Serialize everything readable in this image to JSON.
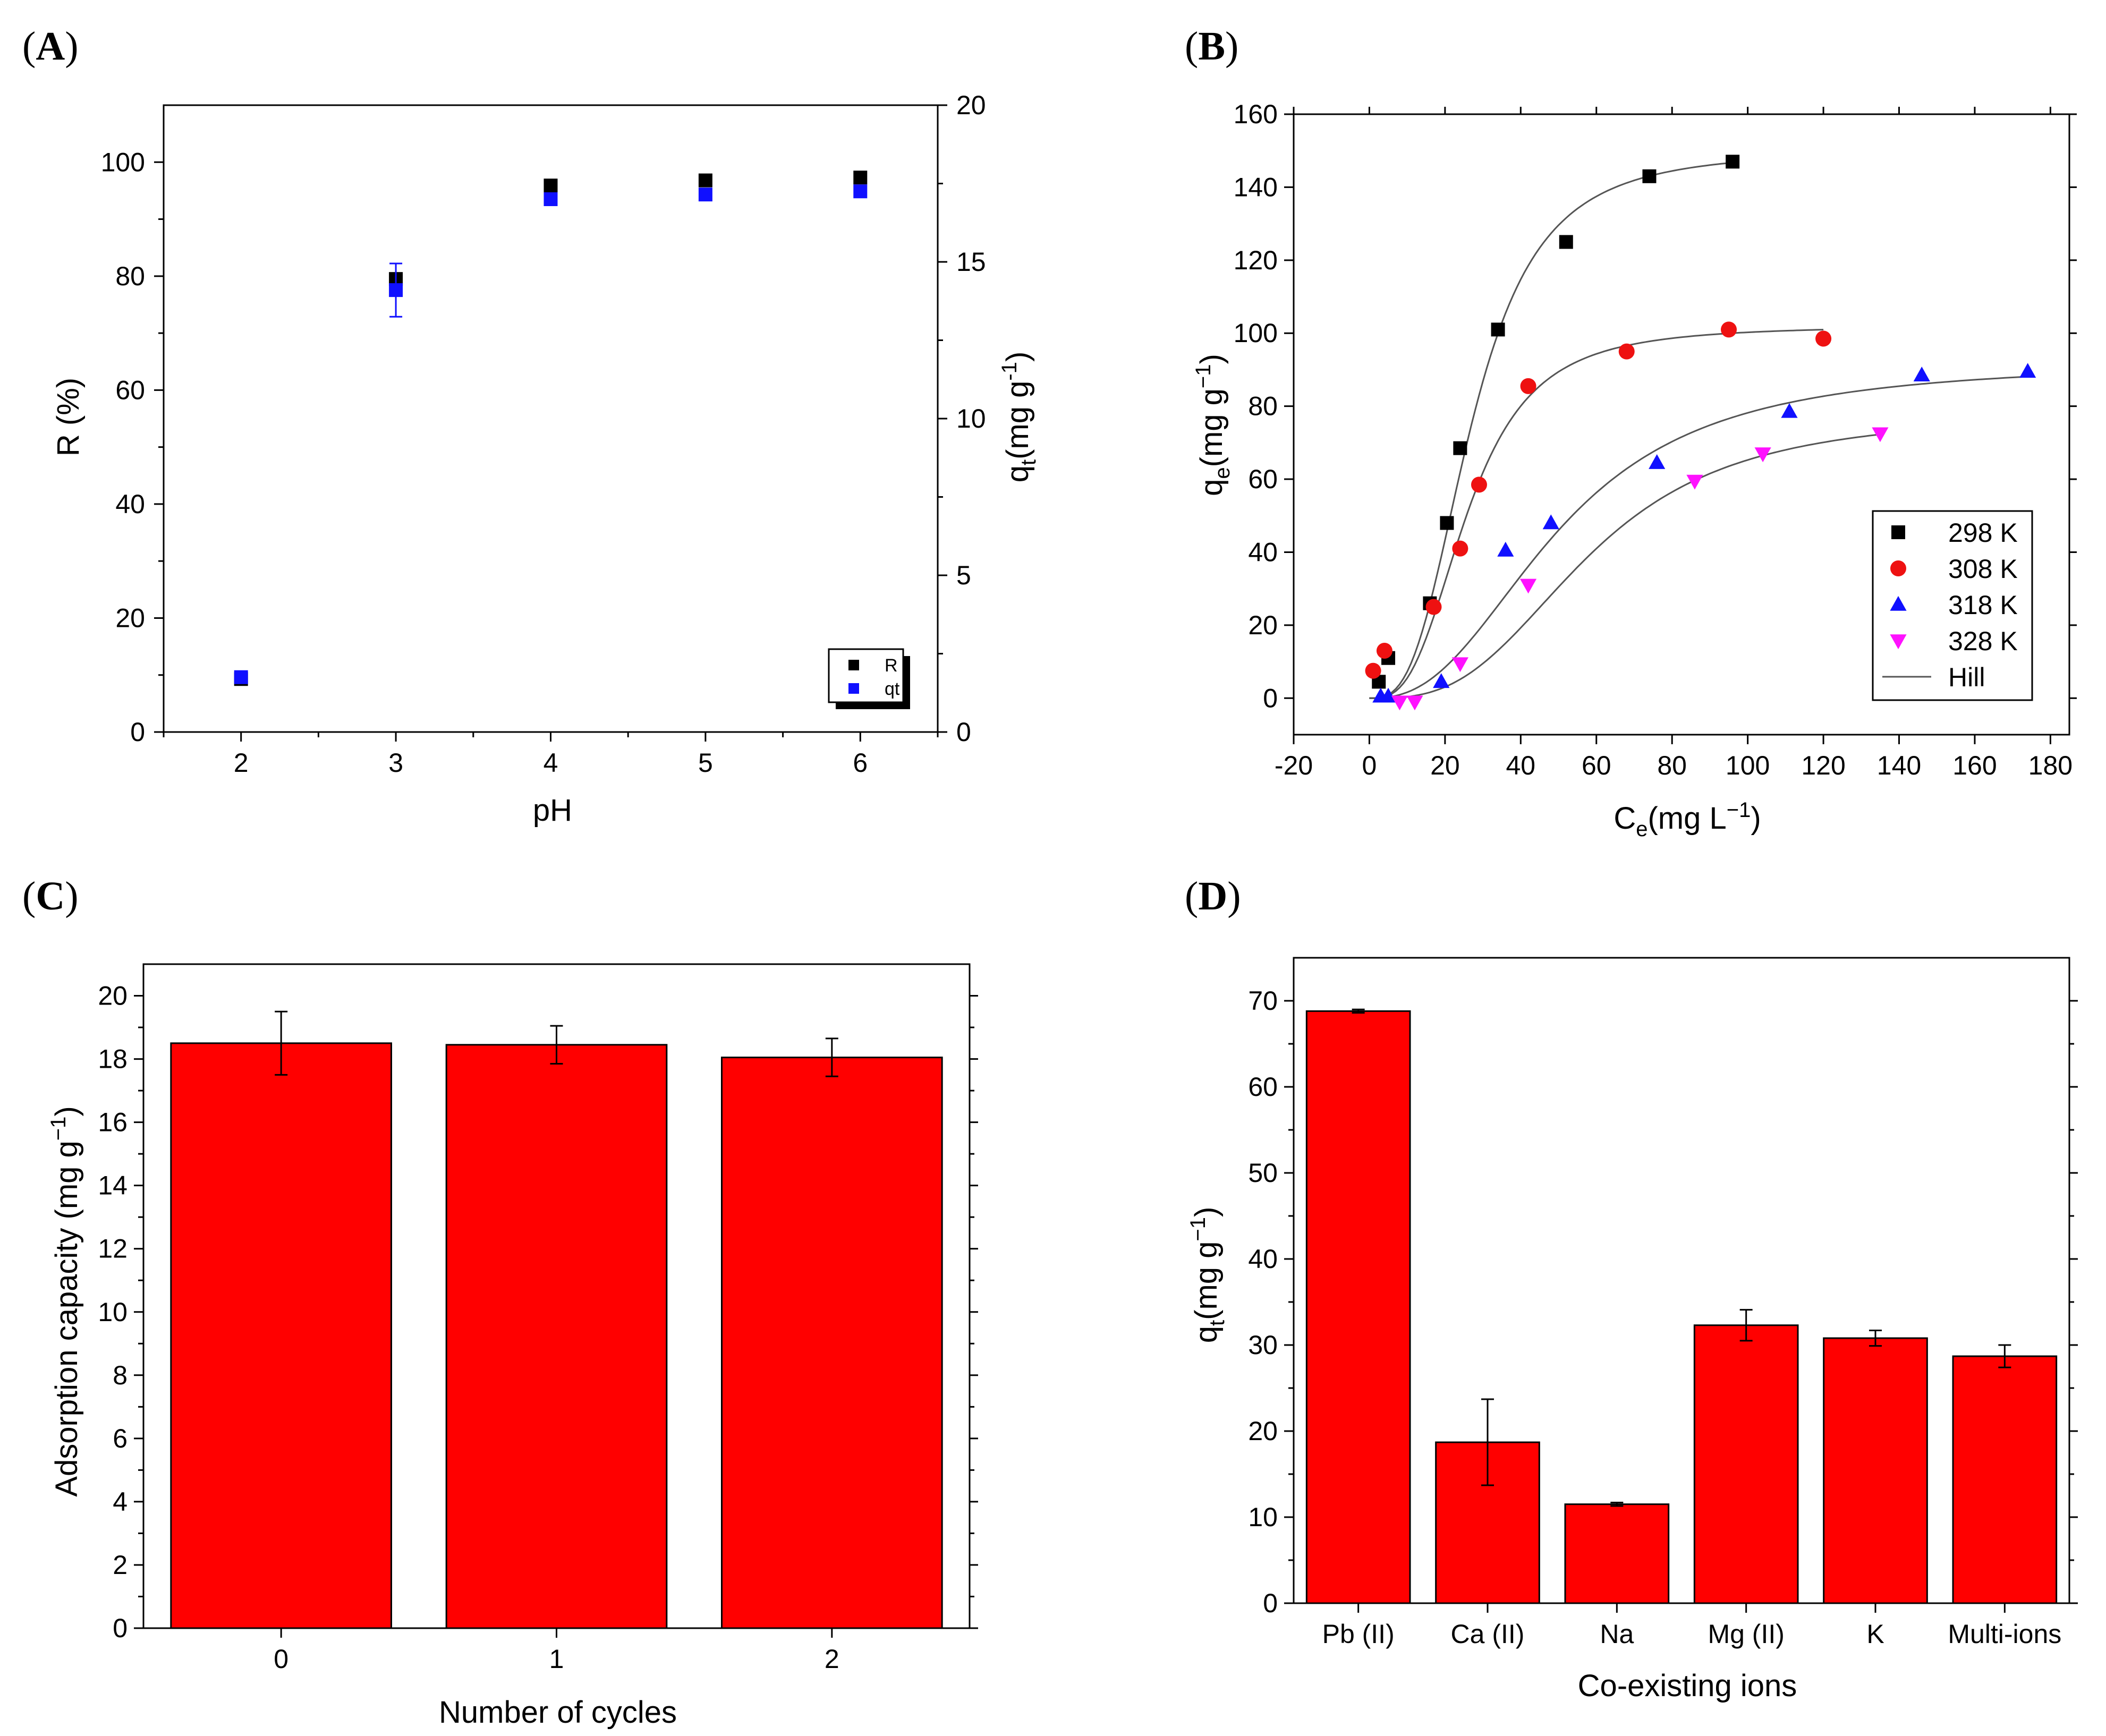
{
  "panels": {
    "A": {
      "letter": "A"
    },
    "B": {
      "letter": "B"
    },
    "C": {
      "letter": "C"
    },
    "D": {
      "letter": "D"
    }
  },
  "chart_data": [
    {
      "panel": "A",
      "type": "scatter",
      "xlabel": "pH",
      "ylabel": "R (%)",
      "ylabel_right": "q",
      "ylabel_right_sub": "t",
      "ylabel_right_unit": "(mg g",
      "ylabel_right_exp": "-1",
      "xlim": [
        1.5,
        6.5
      ],
      "ylim": [
        0,
        110
      ],
      "ylim_right": [
        0,
        20
      ],
      "x_ticks": [
        2,
        3,
        4,
        5,
        6
      ],
      "y_ticks": [
        0,
        20,
        40,
        60,
        80,
        100
      ],
      "y_ticks_right": [
        0,
        5,
        10,
        15,
        20
      ],
      "legend_position": "bottom-right",
      "series": [
        {
          "name": "R",
          "color": "#000000",
          "marker": "square",
          "axis": "left",
          "points": [
            [
              2,
              9.3
            ],
            [
              3,
              79.5
            ],
            [
              4,
              95.9
            ],
            [
              5,
              96.8
            ],
            [
              6,
              97.3
            ]
          ]
        },
        {
          "name": "qt",
          "color": "#1010ff",
          "marker": "square",
          "axis": "right",
          "points": [
            [
              2,
              1.75
            ],
            [
              3,
              14.1
            ],
            [
              4,
              17.0
            ],
            [
              5,
              17.15
            ],
            [
              6,
              17.25
            ]
          ],
          "error": [
            0,
            0.85,
            0,
            0,
            0
          ]
        }
      ]
    },
    {
      "panel": "B",
      "type": "scatter",
      "xlabel": "C",
      "xlabel_sub": "e",
      "xlabel_unit": "(mg L",
      "xlabel_exp": "−1",
      "ylabel": "q",
      "ylabel_sub": "e",
      "ylabel_unit": "(mg g",
      "ylabel_exp": "−1",
      "xlim": [
        -20,
        185
      ],
      "ylim": [
        -10,
        160
      ],
      "x_ticks": [
        -20,
        0,
        20,
        40,
        60,
        80,
        100,
        120,
        140,
        160,
        180
      ],
      "y_ticks": [
        0,
        20,
        40,
        60,
        80,
        100,
        120,
        140,
        160
      ],
      "legend_position": "bottom-right",
      "fit_label": "Hill",
      "series": [
        {
          "name": "298 K",
          "color": "#000000",
          "marker": "square",
          "points": [
            [
              2.5,
              4.5
            ],
            [
              5,
              11
            ],
            [
              16,
              26
            ],
            [
              20.5,
              48
            ],
            [
              24,
              68.5
            ],
            [
              34,
              101
            ],
            [
              52,
              125
            ],
            [
              74,
              143
            ],
            [
              96,
              147
            ]
          ],
          "fit": {
            "qmax": 150,
            "K": 27,
            "n": 3.0,
            "xmax": 96
          }
        },
        {
          "name": "308 K",
          "color": "#ee1111",
          "marker": "circle",
          "points": [
            [
              1,
              7.5
            ],
            [
              4,
              13
            ],
            [
              17,
              25
            ],
            [
              24,
              41
            ],
            [
              29,
              58.5
            ],
            [
              42,
              85.5
            ],
            [
              68,
              95
            ],
            [
              95,
              101
            ],
            [
              120,
              98.5
            ]
          ],
          "fit": {
            "qmax": 102,
            "K": 26,
            "n": 3.0,
            "xmax": 120
          }
        },
        {
          "name": "318 K",
          "color": "#1010ff",
          "marker": "triangle-up",
          "points": [
            [
              3,
              0.5
            ],
            [
              5,
              0.5
            ],
            [
              19,
              4.5
            ],
            [
              36,
              40.5
            ],
            [
              48,
              48
            ],
            [
              76,
              64.5
            ],
            [
              111,
              78.5
            ],
            [
              146,
              88.5
            ],
            [
              174,
              89.5
            ]
          ],
          "fit": {
            "qmax": 92,
            "K": 50,
            "n": 2.5,
            "xmax": 174
          }
        },
        {
          "name": "328 K",
          "color": "#ff11ff",
          "marker": "triangle-down",
          "points": [
            [
              8,
              -1
            ],
            [
              12,
              -1
            ],
            [
              24,
              9.5
            ],
            [
              42,
              31
            ],
            [
              86,
              59.5
            ],
            [
              104,
              67
            ],
            [
              135,
              72.5
            ]
          ],
          "fit": {
            "qmax": 78,
            "K": 58,
            "n": 3.0,
            "xmax": 135
          }
        }
      ]
    },
    {
      "panel": "C",
      "type": "bar",
      "xlabel": "Number of cycles",
      "ylabel": "Adsorption capacity (mg g",
      "ylabel_exp": "−1",
      "ylabel_end": ")",
      "categories": [
        "0",
        "1",
        "2"
      ],
      "values": [
        18.5,
        18.45,
        18.05
      ],
      "errors": [
        1.0,
        0.6,
        0.6
      ],
      "ylim": [
        0,
        21
      ],
      "y_ticks": [
        0,
        2,
        4,
        6,
        8,
        10,
        12,
        14,
        16,
        18,
        20
      ],
      "bar_color": "#ff0000"
    },
    {
      "panel": "D",
      "type": "bar",
      "xlabel": "Co-existing ions",
      "ylabel": "q",
      "ylabel_sub": "t",
      "ylabel_unit": "(mg g",
      "ylabel_exp": "−1",
      "ylabel_end": ")",
      "categories": [
        "Pb (II)",
        "Ca (II)",
        "Na",
        "Mg (II)",
        "K",
        "Multi-ions"
      ],
      "values": [
        68.8,
        18.7,
        11.5,
        32.3,
        30.8,
        28.7
      ],
      "errors": [
        0.2,
        5.0,
        0.2,
        1.8,
        0.9,
        1.3
      ],
      "ylim": [
        0,
        75
      ],
      "y_ticks": [
        0,
        10,
        20,
        30,
        40,
        50,
        60,
        70
      ],
      "bar_color": "#ff0000"
    }
  ]
}
